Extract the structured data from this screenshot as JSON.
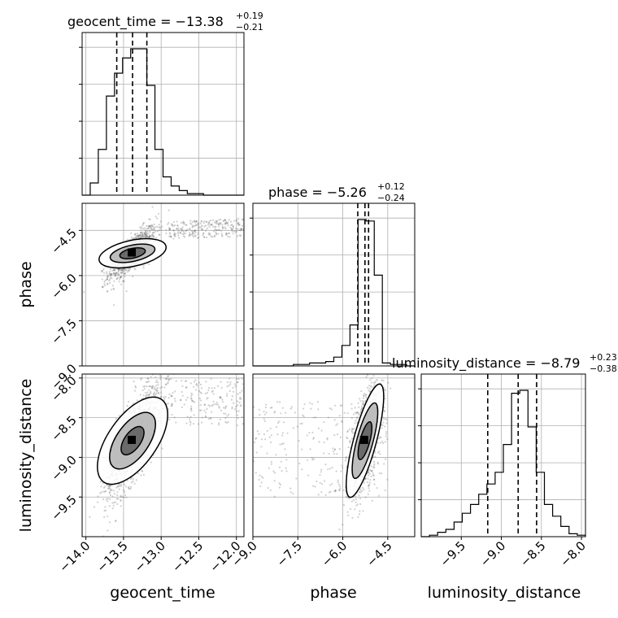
{
  "chart_data": {
    "type": "corner",
    "parameters": [
      {
        "name": "geocent_time",
        "title": "geocent_time = −13.38",
        "median": -13.38,
        "upper": "+0.19",
        "lower": "−0.21",
        "q16": -13.59,
        "q84": -13.19,
        "range": [
          -14.05,
          -11.9
        ]
      },
      {
        "name": "phase",
        "title": "phase = −5.26",
        "median": -5.26,
        "upper": "+0.12",
        "lower": "−0.24",
        "q16": -5.5,
        "q84": -5.14,
        "range": [
          -9.0,
          -3.6
        ]
      },
      {
        "name": "luminosity_distance",
        "title": "luminosity_distance = −8.79",
        "median": -8.79,
        "upper": "+0.23",
        "lower": "−0.38",
        "q16": -9.17,
        "q84": -8.56,
        "range": [
          -10.0,
          -7.95
        ]
      }
    ],
    "x_ticks": {
      "geocent_time": [
        "−14.0",
        "−13.5",
        "−13.0",
        "−12.5",
        "−12.0"
      ],
      "phase": [
        "−9.0",
        "−7.5",
        "−6.0",
        "−4.5"
      ],
      "luminosity_distance": [
        "−9.5",
        "−9.0",
        "−8.5",
        "−8.0"
      ]
    },
    "y_ticks": {
      "phase": [
        "−4.5",
        "−6.0",
        "−7.5",
        "−9.0"
      ],
      "luminosity_distance": [
        "−8.0",
        "−8.5",
        "−9.0",
        "−9.5"
      ]
    },
    "x_tick_values": {
      "geocent_time": [
        -14.0,
        -13.5,
        -13.0,
        -12.5,
        -12.0
      ],
      "phase": [
        -9.0,
        -7.5,
        -6.0,
        -4.5
      ],
      "luminosity_distance": [
        -9.5,
        -9.0,
        -8.5,
        -8.0
      ]
    },
    "y_tick_values": {
      "phase": [
        -4.5,
        -6.0,
        -7.5,
        -9.0
      ],
      "luminosity_distance": [
        -8.0,
        -8.5,
        -9.0,
        -9.5
      ]
    },
    "hist_1d": {
      "geocent_time": {
        "edges_start": -14.05,
        "bin_width": 0.1075,
        "counts": [
          0,
          8,
          30,
          65,
          80,
          90,
          96,
          96,
          72,
          30,
          12,
          6,
          3,
          1,
          1,
          0,
          0,
          0,
          0,
          0
        ]
      },
      "phase": {
        "edges_start": -9.0,
        "bin_width": 0.27,
        "counts": [
          0,
          0,
          0,
          0,
          0,
          1,
          1,
          2,
          2,
          3,
          6,
          14,
          28,
          100,
          99,
          62,
          2,
          1,
          1,
          0
        ]
      },
      "luminosity_distance": {
        "edges_start": -10.0,
        "bin_width": 0.1025,
        "counts": [
          0,
          1,
          3,
          5,
          10,
          16,
          22,
          29,
          36,
          44,
          63,
          98,
          100,
          75,
          44,
          22,
          14,
          7,
          2,
          1
        ]
      }
    },
    "grid": true,
    "grid_color": "#b0b0b0",
    "line_color": "#000000",
    "point_color": "#555555"
  }
}
